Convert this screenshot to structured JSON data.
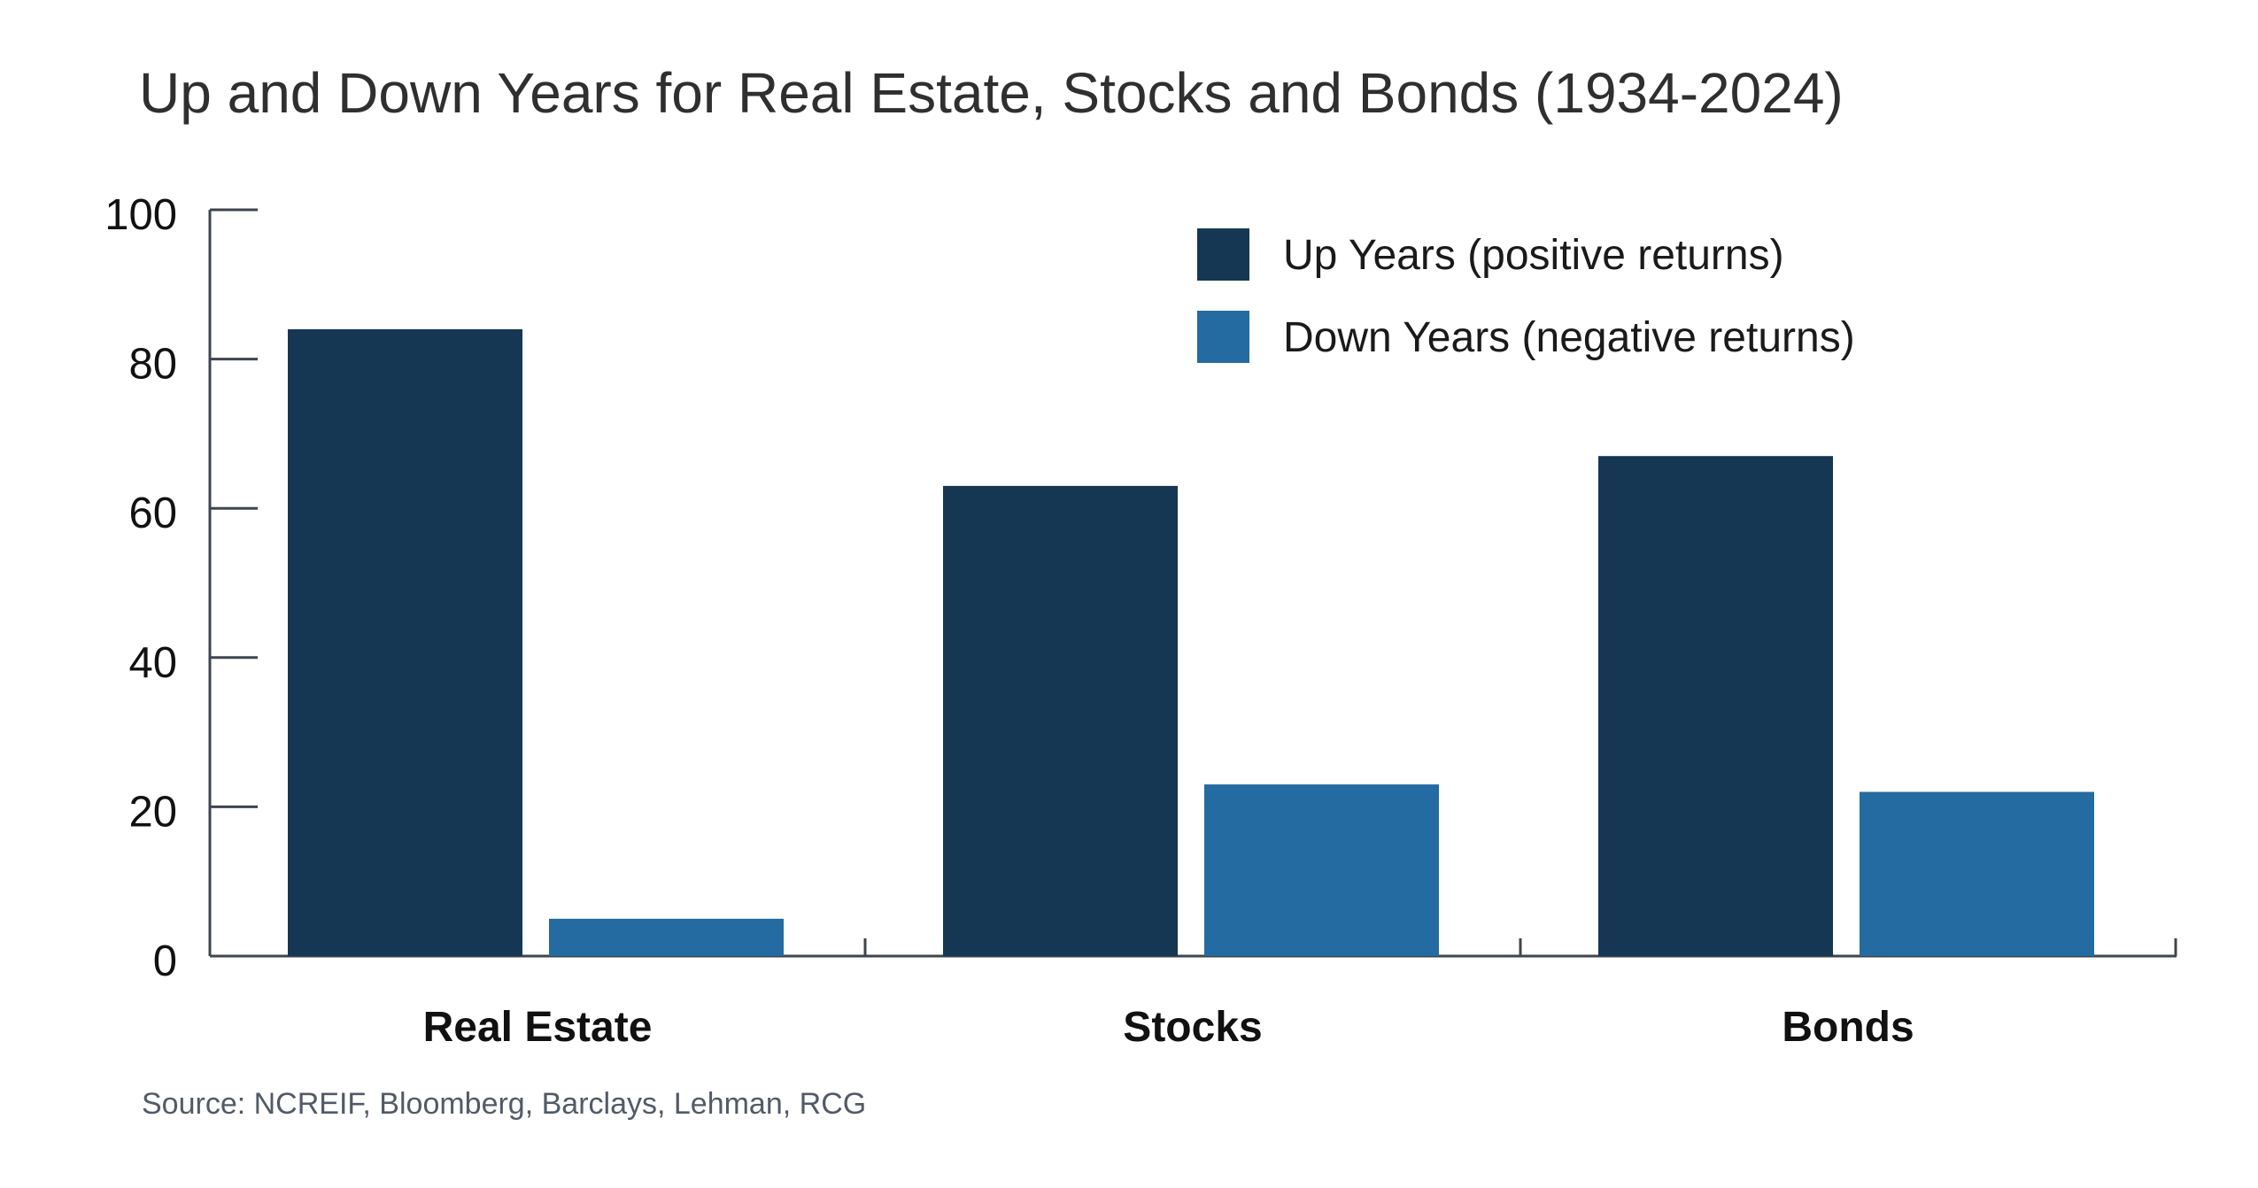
{
  "colors": {
    "up": "#153753",
    "down": "#236ba1",
    "axis": "#3f454d"
  },
  "chart_data": {
    "type": "bar",
    "title": "Up and Down Years for Real Estate, Stocks and Bonds (1934-2024)",
    "source": "Source: NCREIF, Bloomberg, Barclays, Lehman, RCG",
    "xlabel": "",
    "ylabel": "",
    "ylim": [
      0,
      100
    ],
    "yticks": [
      "0",
      "20",
      "40",
      "60",
      "80",
      "100"
    ],
    "categories": [
      "Real Estate",
      "Stocks",
      "Bonds"
    ],
    "series": [
      {
        "name": "Up Years (positive returns)",
        "values": [
          84,
          63,
          67
        ]
      },
      {
        "name": "Down Years (negative returns)",
        "values": [
          5,
          23,
          22
        ]
      }
    ],
    "legend_position": "top-right",
    "grid": false
  }
}
